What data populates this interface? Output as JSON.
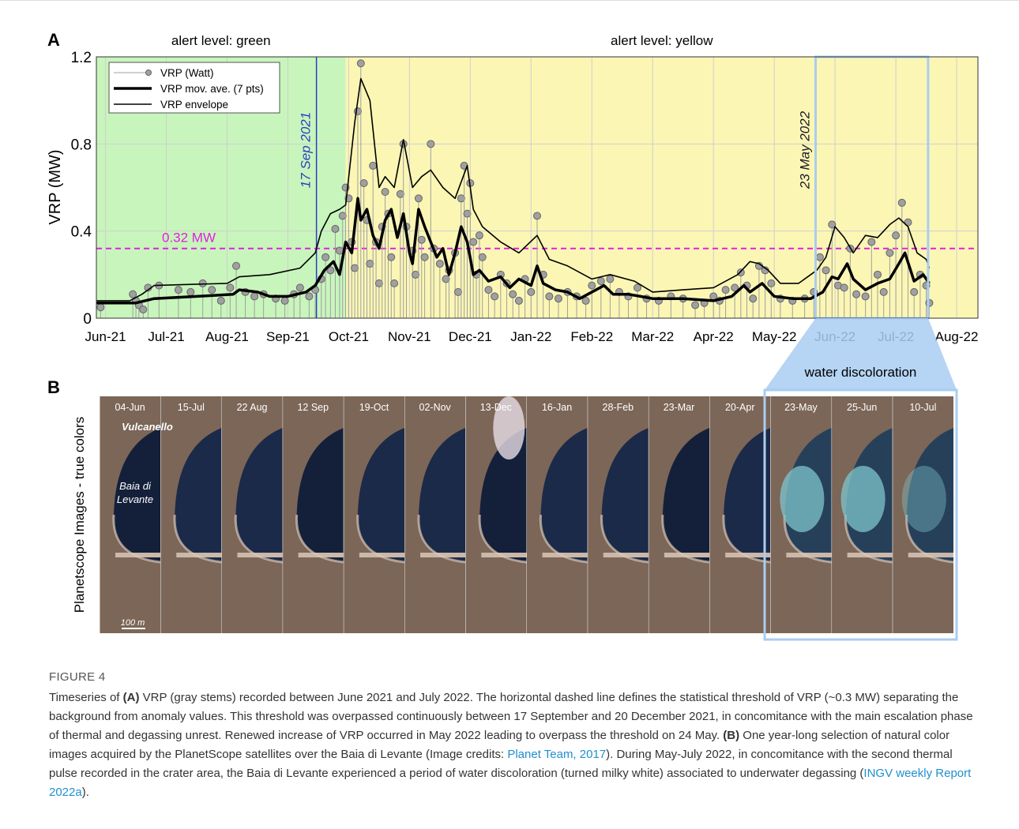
{
  "chart_data": {
    "type": "stem",
    "panel": "A",
    "ylabel": "VRP (MW)",
    "xlim": [
      -0.15,
      14.35
    ],
    "ylim": [
      0,
      1.2
    ],
    "xticks": [
      {
        "value": 0,
        "label": "Jun-21"
      },
      {
        "value": 1,
        "label": "Jul-21"
      },
      {
        "value": 2,
        "label": "Aug-21"
      },
      {
        "value": 3,
        "label": "Sep-21"
      },
      {
        "value": 4,
        "label": "Oct-21"
      },
      {
        "value": 5,
        "label": "Nov-21"
      },
      {
        "value": 6,
        "label": "Dec-21"
      },
      {
        "value": 7,
        "label": "Jan-22"
      },
      {
        "value": 8,
        "label": "Feb-22"
      },
      {
        "value": 9,
        "label": "Mar-22"
      },
      {
        "value": 10,
        "label": "Apr-22"
      },
      {
        "value": 11,
        "label": "May-22"
      },
      {
        "value": 12,
        "label": "Jun-22"
      },
      {
        "value": 13,
        "label": "Jul-22"
      },
      {
        "value": 14,
        "label": "Aug-22"
      }
    ],
    "yticks": [
      0,
      0.4,
      0.8,
      1.2
    ],
    "grid": true,
    "legend": "upper left",
    "regions": [
      {
        "label": "alert level: green",
        "to": 3.95,
        "color": "#c8f5bc"
      },
      {
        "label": "alert level: yellow",
        "color": "#fbf6b4"
      }
    ],
    "markers": [
      {
        "x": 3.47,
        "label": "17 Sep 2021",
        "color": "#2b3fc4"
      },
      {
        "x": 11.68,
        "label": "23 May 2022",
        "color": "#1a1a2a"
      }
    ],
    "threshold": {
      "value": 0.32,
      "label": "0.32 MW",
      "color": "#e020e0"
    },
    "highlight": {
      "from": 11.68,
      "to": 13.53,
      "label": "water discoloration",
      "color": "#a9cdf2"
    },
    "series": [
      {
        "name": "VRP (Watt)",
        "color": "#a0a0a0",
        "style": "stem",
        "x": [
          -0.08,
          0.45,
          0.5,
          0.55,
          0.62,
          0.7,
          0.88,
          1.2,
          1.4,
          1.6,
          1.75,
          1.9,
          2.05,
          2.15,
          2.3,
          2.45,
          2.6,
          2.8,
          2.95,
          3.1,
          3.2,
          3.35,
          3.45,
          3.55,
          3.62,
          3.7,
          3.78,
          3.85,
          3.9,
          3.95,
          4.0,
          4.05,
          4.1,
          4.15,
          4.2,
          4.25,
          4.3,
          4.35,
          4.4,
          4.45,
          4.5,
          4.55,
          4.6,
          4.65,
          4.7,
          4.75,
          4.85,
          4.9,
          4.95,
          5.05,
          5.1,
          5.15,
          5.2,
          5.25,
          5.35,
          5.4,
          5.5,
          5.6,
          5.65,
          5.75,
          5.8,
          5.85,
          5.9,
          5.95,
          6.0,
          6.05,
          6.1,
          6.15,
          6.2,
          6.3,
          6.4,
          6.5,
          6.6,
          6.7,
          6.8,
          6.9,
          7.0,
          7.1,
          7.2,
          7.3,
          7.45,
          7.6,
          7.75,
          7.9,
          8.0,
          8.15,
          8.3,
          8.45,
          8.6,
          8.75,
          8.9,
          9.1,
          9.3,
          9.5,
          9.7,
          9.85,
          10.0,
          10.1,
          10.2,
          10.35,
          10.45,
          10.55,
          10.65,
          10.75,
          10.85,
          10.95,
          11.1,
          11.3,
          11.5,
          11.65,
          11.75,
          11.85,
          11.95,
          12.05,
          12.15,
          12.25,
          12.35,
          12.5,
          12.6,
          12.7,
          12.8,
          12.9,
          13.0,
          13.1,
          13.2,
          13.3,
          13.4,
          13.5,
          13.55
        ],
        "values": [
          0.05,
          0.11,
          0.08,
          0.06,
          0.04,
          0.14,
          0.15,
          0.13,
          0.12,
          0.16,
          0.13,
          0.08,
          0.14,
          0.24,
          0.12,
          0.1,
          0.11,
          0.09,
          0.08,
          0.11,
          0.14,
          0.1,
          0.13,
          0.18,
          0.28,
          0.22,
          0.41,
          0.31,
          0.47,
          0.6,
          0.55,
          0.35,
          0.23,
          0.95,
          1.17,
          0.62,
          0.45,
          0.25,
          0.7,
          0.35,
          0.16,
          0.42,
          0.58,
          0.48,
          0.28,
          0.16,
          0.57,
          0.8,
          0.42,
          0.31,
          0.2,
          0.55,
          0.36,
          0.28,
          0.8,
          0.32,
          0.25,
          0.18,
          0.22,
          0.3,
          0.12,
          0.55,
          0.7,
          0.48,
          0.62,
          0.35,
          0.2,
          0.38,
          0.28,
          0.13,
          0.1,
          0.2,
          0.16,
          0.11,
          0.08,
          0.18,
          0.12,
          0.47,
          0.2,
          0.1,
          0.09,
          0.12,
          0.1,
          0.08,
          0.15,
          0.17,
          0.18,
          0.12,
          0.1,
          0.14,
          0.09,
          0.08,
          0.1,
          0.09,
          0.06,
          0.07,
          0.1,
          0.08,
          0.13,
          0.14,
          0.21,
          0.15,
          0.09,
          0.24,
          0.22,
          0.16,
          0.09,
          0.08,
          0.09,
          0.12,
          0.28,
          0.22,
          0.43,
          0.15,
          0.14,
          0.32,
          0.11,
          0.1,
          0.35,
          0.2,
          0.12,
          0.3,
          0.38,
          0.53,
          0.44,
          0.12,
          0.2,
          0.15,
          0.07
        ]
      },
      {
        "name": "VRP mov. ave. (7 pts)",
        "color": "#000000",
        "style": "thick",
        "x": [
          -0.15,
          0.5,
          0.8,
          1.5,
          2.1,
          2.2,
          2.5,
          2.7,
          3.0,
          3.3,
          3.45,
          3.6,
          3.75,
          3.85,
          3.95,
          4.05,
          4.15,
          4.2,
          4.3,
          4.4,
          4.5,
          4.6,
          4.7,
          4.8,
          4.9,
          5.0,
          5.05,
          5.15,
          5.25,
          5.35,
          5.45,
          5.55,
          5.65,
          5.75,
          5.85,
          5.95,
          6.05,
          6.15,
          6.3,
          6.5,
          6.65,
          6.8,
          7.0,
          7.1,
          7.2,
          7.4,
          7.6,
          7.8,
          8.0,
          8.2,
          8.35,
          8.6,
          8.8,
          9.0,
          9.5,
          10.0,
          10.3,
          10.5,
          10.6,
          10.8,
          11.0,
          11.3,
          11.6,
          11.8,
          11.95,
          12.05,
          12.2,
          12.3,
          12.5,
          12.7,
          12.9,
          13.05,
          13.15,
          13.3,
          13.45,
          13.55
        ],
        "values": [
          0.07,
          0.07,
          0.09,
          0.1,
          0.11,
          0.13,
          0.12,
          0.1,
          0.1,
          0.12,
          0.15,
          0.22,
          0.26,
          0.2,
          0.35,
          0.3,
          0.55,
          0.45,
          0.5,
          0.38,
          0.32,
          0.45,
          0.5,
          0.37,
          0.48,
          0.3,
          0.25,
          0.5,
          0.42,
          0.35,
          0.28,
          0.32,
          0.2,
          0.3,
          0.42,
          0.35,
          0.2,
          0.22,
          0.17,
          0.19,
          0.14,
          0.18,
          0.15,
          0.24,
          0.16,
          0.13,
          0.12,
          0.09,
          0.12,
          0.15,
          0.11,
          0.11,
          0.1,
          0.09,
          0.09,
          0.08,
          0.1,
          0.15,
          0.12,
          0.16,
          0.1,
          0.09,
          0.09,
          0.12,
          0.19,
          0.18,
          0.25,
          0.18,
          0.13,
          0.16,
          0.18,
          0.25,
          0.3,
          0.17,
          0.2,
          0.16
        ]
      },
      {
        "name": "VRP envelope",
        "color": "#000000",
        "style": "thin",
        "x": [
          -0.15,
          0.4,
          0.6,
          0.8,
          2.0,
          2.2,
          2.7,
          3.2,
          3.45,
          3.55,
          3.7,
          3.85,
          3.95,
          4.1,
          4.2,
          4.35,
          4.5,
          4.6,
          4.75,
          4.9,
          5.05,
          5.2,
          5.35,
          5.55,
          5.75,
          5.95,
          6.05,
          6.2,
          6.5,
          6.8,
          7.1,
          7.3,
          7.6,
          8.0,
          8.3,
          8.7,
          9.0,
          9.5,
          10.0,
          10.4,
          10.6,
          10.75,
          10.9,
          11.1,
          11.4,
          11.7,
          11.85,
          12.0,
          12.15,
          12.3,
          12.5,
          12.7,
          12.9,
          13.05,
          13.2,
          13.35,
          13.5,
          13.55
        ],
        "values": [
          0.08,
          0.08,
          0.11,
          0.15,
          0.16,
          0.19,
          0.2,
          0.23,
          0.3,
          0.4,
          0.48,
          0.5,
          0.52,
          0.9,
          1.1,
          1.0,
          0.6,
          0.65,
          0.6,
          0.82,
          0.6,
          0.65,
          0.68,
          0.6,
          0.55,
          0.7,
          0.5,
          0.42,
          0.35,
          0.3,
          0.38,
          0.27,
          0.24,
          0.18,
          0.2,
          0.17,
          0.12,
          0.13,
          0.14,
          0.2,
          0.26,
          0.25,
          0.22,
          0.16,
          0.16,
          0.22,
          0.28,
          0.42,
          0.37,
          0.3,
          0.38,
          0.37,
          0.43,
          0.46,
          0.42,
          0.3,
          0.27,
          0.23
        ]
      }
    ]
  },
  "panel_b": {
    "panel": "B",
    "ylabel": "Planetscope Images  - true colors",
    "tiles": [
      "04-Jun",
      "15-Jul",
      "22 Aug",
      "12 Sep",
      "19-Oct",
      "02-Nov",
      "13-Dec",
      "16-Jan",
      "28-Feb",
      "23-Mar",
      "20-Apr",
      "23-May",
      "25-Jun",
      "10-Jul"
    ],
    "place_1": "Vulcanello",
    "place_2": [
      "Baia di",
      "Levante"
    ],
    "scale": "100 m"
  },
  "caption": {
    "label": "FIGURE 4",
    "parts": [
      "Timeseries of ",
      "(A)",
      " VRP (gray stems) recorded between June 2021 and July 2022. The horizontal dashed line defines the statistical threshold of VRP (~0.3 MW) separating the background from anomaly values. This threshold was overpassed continuously between 17 September and 20 December 2021, in concomitance with the main escalation phase of thermal and degassing unrest. Renewed increase of VRP occurred in May 2022 leading to overpass the threshold on 24 May. ",
      "(B)",
      " One year-long selection of natural color images acquired by the PlanetScope satellites over the Baia di Levante (Image credits: ",
      "Planet Team, 2017",
      "). During May-July 2022, in concomitance with the second thermal pulse recorded in the crater area, the Baia di Levante experienced a period of water discoloration (turned milky white) associated to underwater degassing (",
      "INGV weekly Report 2022a",
      ")."
    ]
  }
}
